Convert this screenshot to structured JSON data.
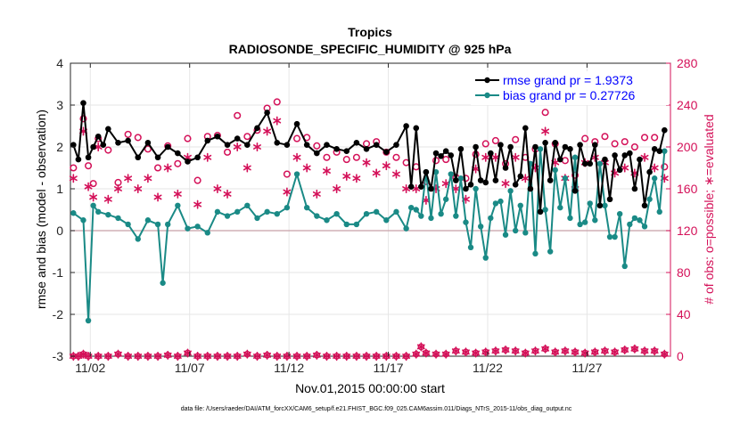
{
  "chart_data": {
    "type": "line",
    "title": "Tropics",
    "subtitle": "RADIOSONDE_SPECIFIC_HUMIDITY @ 925 hPa",
    "xlabel": "Nov.01,2015 00:00:00 start",
    "ylabel_left": "rmse and bias (model - observation)",
    "ylabel_right": "# of obs: o=possible; ∗=evaluated",
    "footnote": "data file: /Users/raeder/DAI/ATM_forcXX/CAM6_setup/f.e21.FHIST_BGC.f09_025.CAM6assim.011/Diags_NTrS_2015-11/obs_diag_output.nc",
    "xlim": [
      0.6,
      30.8
    ],
    "ylim_left": [
      -3,
      4
    ],
    "ylim_right": [
      0,
      280
    ],
    "left_ticks": [
      -3,
      -2,
      -1,
      0,
      1,
      2,
      3,
      4
    ],
    "right_ticks": [
      0,
      40,
      80,
      120,
      160,
      200,
      240,
      280
    ],
    "x_ticks": [
      {
        "value": 1.6,
        "label": "11/02"
      },
      {
        "value": 6.6,
        "label": "11/07"
      },
      {
        "value": 11.6,
        "label": "11/12"
      },
      {
        "value": 16.6,
        "label": "11/17"
      },
      {
        "value": 21.6,
        "label": "11/22"
      },
      {
        "value": 26.6,
        "label": "11/27"
      }
    ],
    "legend": [
      {
        "label": "rmse grand pr = 1.9373",
        "color": "#000000"
      },
      {
        "label": "bias grand pr = 0.27726",
        "color": "#00827f"
      }
    ],
    "colors": {
      "rmse": "#000000",
      "bias": "#1a8a86",
      "obs": "#d41159",
      "zero_line": "#c8a0a8"
    },
    "series": [
      {
        "name": "rmse",
        "times": [
          0.75,
          1.0,
          1.25,
          1.5,
          1.75,
          2.0,
          2.25,
          2.5,
          3.0,
          3.5,
          4.0,
          4.5,
          5.0,
          5.5,
          6.0,
          6.5,
          7.0,
          7.5,
          8.0,
          8.5,
          9.0,
          9.5,
          10.0,
          10.5,
          11.0,
          11.5,
          12.0,
          12.5,
          13.0,
          13.5,
          14.0,
          14.5,
          15.0,
          15.5,
          16.0,
          16.5,
          17.0,
          17.5,
          17.75,
          18.0,
          18.25,
          18.5,
          18.75,
          19.0,
          19.25,
          19.5,
          19.75,
          20.0,
          20.25,
          20.5,
          20.75,
          21.0,
          21.25,
          21.5,
          21.75,
          22.0,
          22.25,
          22.5,
          22.75,
          23.0,
          23.25,
          23.5,
          23.75,
          24.0,
          24.25,
          24.5,
          24.75,
          25.0,
          25.25,
          25.5,
          25.75,
          26.0,
          26.25,
          26.5,
          26.75,
          27.0,
          27.25,
          27.5,
          27.75,
          28.0,
          28.25,
          28.5,
          28.75,
          29.0,
          29.25,
          29.5,
          29.75,
          30.0,
          30.25,
          30.5
        ],
        "values": [
          2.05,
          1.7,
          3.05,
          1.75,
          2.0,
          2.25,
          2.05,
          2.43,
          2.1,
          2.15,
          1.75,
          2.1,
          1.75,
          2.0,
          1.85,
          1.65,
          1.75,
          2.15,
          2.25,
          2.05,
          2.2,
          2.05,
          2.45,
          2.82,
          2.1,
          2.05,
          2.55,
          2.05,
          1.85,
          2.05,
          1.95,
          1.9,
          2.1,
          1.95,
          2.05,
          1.88,
          2.05,
          2.5,
          1.05,
          2.45,
          1.05,
          1.4,
          1.0,
          1.85,
          1.78,
          1.9,
          1.8,
          1.2,
          1.95,
          1.0,
          1.1,
          2.0,
          1.2,
          1.15,
          1.85,
          1.2,
          2.05,
          1.5,
          2.0,
          1.1,
          1.3,
          2.45,
          1.0,
          2.0,
          0.45,
          2.1,
          1.2,
          2.1,
          1.7,
          2.0,
          1.95,
          0.95,
          2.05,
          1.6,
          1.6,
          2.05,
          0.6,
          1.7,
          0.75,
          1.8,
          1.45,
          1.8,
          1.85,
          1.0,
          1.7,
          0.6,
          1.4,
          1.95,
          1.9,
          2.4
        ]
      },
      {
        "name": "bias",
        "times": [
          0.75,
          1.25,
          1.5,
          1.75,
          2.0,
          2.5,
          3.0,
          3.5,
          4.0,
          4.5,
          5.0,
          5.25,
          5.5,
          6.0,
          6.5,
          7.0,
          7.5,
          8.0,
          8.5,
          9.0,
          9.5,
          10.0,
          10.5,
          11.0,
          11.5,
          12.0,
          12.5,
          13.0,
          13.5,
          14.0,
          14.5,
          15.0,
          15.5,
          16.0,
          16.5,
          17.0,
          17.5,
          17.75,
          18.0,
          18.25,
          18.5,
          18.75,
          19.0,
          19.25,
          19.5,
          19.75,
          20.0,
          20.25,
          20.5,
          20.75,
          21.0,
          21.25,
          21.5,
          21.75,
          22.0,
          22.25,
          22.5,
          22.75,
          23.0,
          23.25,
          23.5,
          23.75,
          24.0,
          24.25,
          24.5,
          24.75,
          25.0,
          25.25,
          25.5,
          25.75,
          26.0,
          26.25,
          26.5,
          26.75,
          27.0,
          27.25,
          27.5,
          27.75,
          28.0,
          28.25,
          28.5,
          28.75,
          29.0,
          29.25,
          29.5,
          29.75,
          30.0,
          30.25,
          30.5
        ],
        "values": [
          0.42,
          0.25,
          -2.15,
          0.6,
          0.45,
          0.38,
          0.3,
          0.15,
          -0.2,
          0.25,
          0.15,
          -1.25,
          0.15,
          0.6,
          0.05,
          0.1,
          -0.05,
          0.45,
          0.35,
          0.45,
          0.6,
          0.3,
          0.45,
          0.4,
          0.55,
          1.35,
          0.55,
          0.35,
          0.25,
          0.4,
          0.15,
          0.15,
          0.4,
          0.45,
          0.25,
          0.45,
          0.05,
          0.55,
          0.5,
          0.35,
          1.4,
          0.3,
          1.4,
          0.4,
          0.75,
          1.35,
          0.35,
          1.25,
          0.2,
          -0.4,
          1.0,
          0.1,
          -0.65,
          0.3,
          0.65,
          0.7,
          -0.1,
          0.95,
          0.0,
          0.6,
          -0.05,
          1.6,
          -0.55,
          1.95,
          0.5,
          -0.5,
          1.45,
          0.55,
          1.25,
          0.3,
          1.75,
          0.15,
          0.2,
          0.65,
          0.25,
          1.6,
          0.6,
          -0.15,
          -0.15,
          0.4,
          -0.85,
          0.15,
          0.3,
          0.25,
          0.1,
          0.75,
          1.25,
          0.45,
          1.9
        ]
      },
      {
        "name": "obs possible",
        "times": [
          0.75,
          1.25,
          1.5,
          1.75,
          2.0,
          2.5,
          3.0,
          3.5,
          4.0,
          4.5,
          5.0,
          5.5,
          6.0,
          6.5,
          7.0,
          7.5,
          8.0,
          8.5,
          9.0,
          9.5,
          10.0,
          10.5,
          11.0,
          11.5,
          12.0,
          12.5,
          13.0,
          13.5,
          14.0,
          14.5,
          15.0,
          15.5,
          16.0,
          16.5,
          17.0,
          17.5,
          18.0,
          18.5,
          19.0,
          19.5,
          20.0,
          20.5,
          21.0,
          21.5,
          22.0,
          22.5,
          23.0,
          23.5,
          24.0,
          24.5,
          25.0,
          25.5,
          26.0,
          26.5,
          27.0,
          27.5,
          28.0,
          28.5,
          29.0,
          29.5,
          30.0,
          30.5
        ],
        "values": [
          180,
          227,
          182,
          165,
          208,
          197,
          166,
          212,
          209,
          198,
          180,
          201,
          184,
          208,
          168,
          210,
          211,
          195,
          230,
          210,
          216,
          237,
          243,
          174,
          208,
          209,
          201,
          190,
          195,
          188,
          190,
          203,
          205,
          195,
          190,
          185,
          181,
          167,
          187,
          188,
          171,
          170,
          193,
          203,
          206,
          184,
          207,
          190,
          198,
          233,
          203,
          187,
          173,
          208,
          205,
          210,
          203,
          205,
          200,
          209,
          209,
          181
        ]
      },
      {
        "name": "obs evaluated",
        "times": [
          0.75,
          1.25,
          1.5,
          1.75,
          2.0,
          2.5,
          3.0,
          3.5,
          4.0,
          4.5,
          5.0,
          5.5,
          6.0,
          6.5,
          7.0,
          7.5,
          8.0,
          8.5,
          9.0,
          9.5,
          10.0,
          10.5,
          11.0,
          11.5,
          12.0,
          12.5,
          13.0,
          13.5,
          14.0,
          14.5,
          15.0,
          15.5,
          16.0,
          16.5,
          17.0,
          17.5,
          18.0,
          18.5,
          19.0,
          19.5,
          20.0,
          20.5,
          21.0,
          21.5,
          22.0,
          22.5,
          23.0,
          23.5,
          24.0,
          24.5,
          25.0,
          25.5,
          26.0,
          26.5,
          27.0,
          27.5,
          28.0,
          28.5,
          29.0,
          29.5,
          30.0,
          30.5
        ],
        "values": [
          170,
          215,
          162,
          152,
          200,
          150,
          160,
          170,
          160,
          170,
          152,
          180,
          155,
          190,
          145,
          190,
          160,
          155,
          200,
          180,
          200,
          215,
          225,
          157,
          190,
          180,
          155,
          177,
          160,
          172,
          170,
          185,
          175,
          182,
          174,
          160,
          160,
          149,
          160,
          165,
          160,
          150,
          179,
          190,
          190,
          165,
          190,
          170,
          180,
          215,
          185,
          170,
          160,
          185,
          190,
          185,
          175,
          180,
          175,
          190,
          180,
          170
        ]
      },
      {
        "name": "obs low",
        "times": [
          0.75,
          1.0,
          1.25,
          1.5,
          2.0,
          2.5,
          3.0,
          3.5,
          4.0,
          4.5,
          5.0,
          5.5,
          6.0,
          6.5,
          7.0,
          7.5,
          8.0,
          8.5,
          9.0,
          9.5,
          10.0,
          10.5,
          11.0,
          11.5,
          12.0,
          12.5,
          13.0,
          13.5,
          14.0,
          14.5,
          15.0,
          15.5,
          16.0,
          16.5,
          17.0,
          17.5,
          18.0,
          18.25,
          18.5,
          19.0,
          19.5,
          20.0,
          20.5,
          21.0,
          21.5,
          22.0,
          22.5,
          23.0,
          23.5,
          24.0,
          24.5,
          25.0,
          25.5,
          26.0,
          26.5,
          27.0,
          27.5,
          28.0,
          28.5,
          29.0,
          29.5,
          30.0,
          30.5
        ],
        "values": [
          0,
          0,
          2,
          0,
          0,
          0,
          2,
          0,
          0,
          0,
          0,
          1,
          0,
          3,
          0,
          0,
          0,
          0,
          0,
          2,
          0,
          1,
          0,
          0,
          0,
          0,
          1,
          0,
          0,
          0,
          0,
          0,
          0,
          0,
          0,
          0,
          2,
          9,
          3,
          2,
          2,
          5,
          4,
          3,
          4,
          5,
          6,
          5,
          3,
          5,
          7,
          4,
          5,
          4,
          3,
          4,
          5,
          4,
          6,
          7,
          5,
          5,
          2
        ]
      }
    ]
  }
}
